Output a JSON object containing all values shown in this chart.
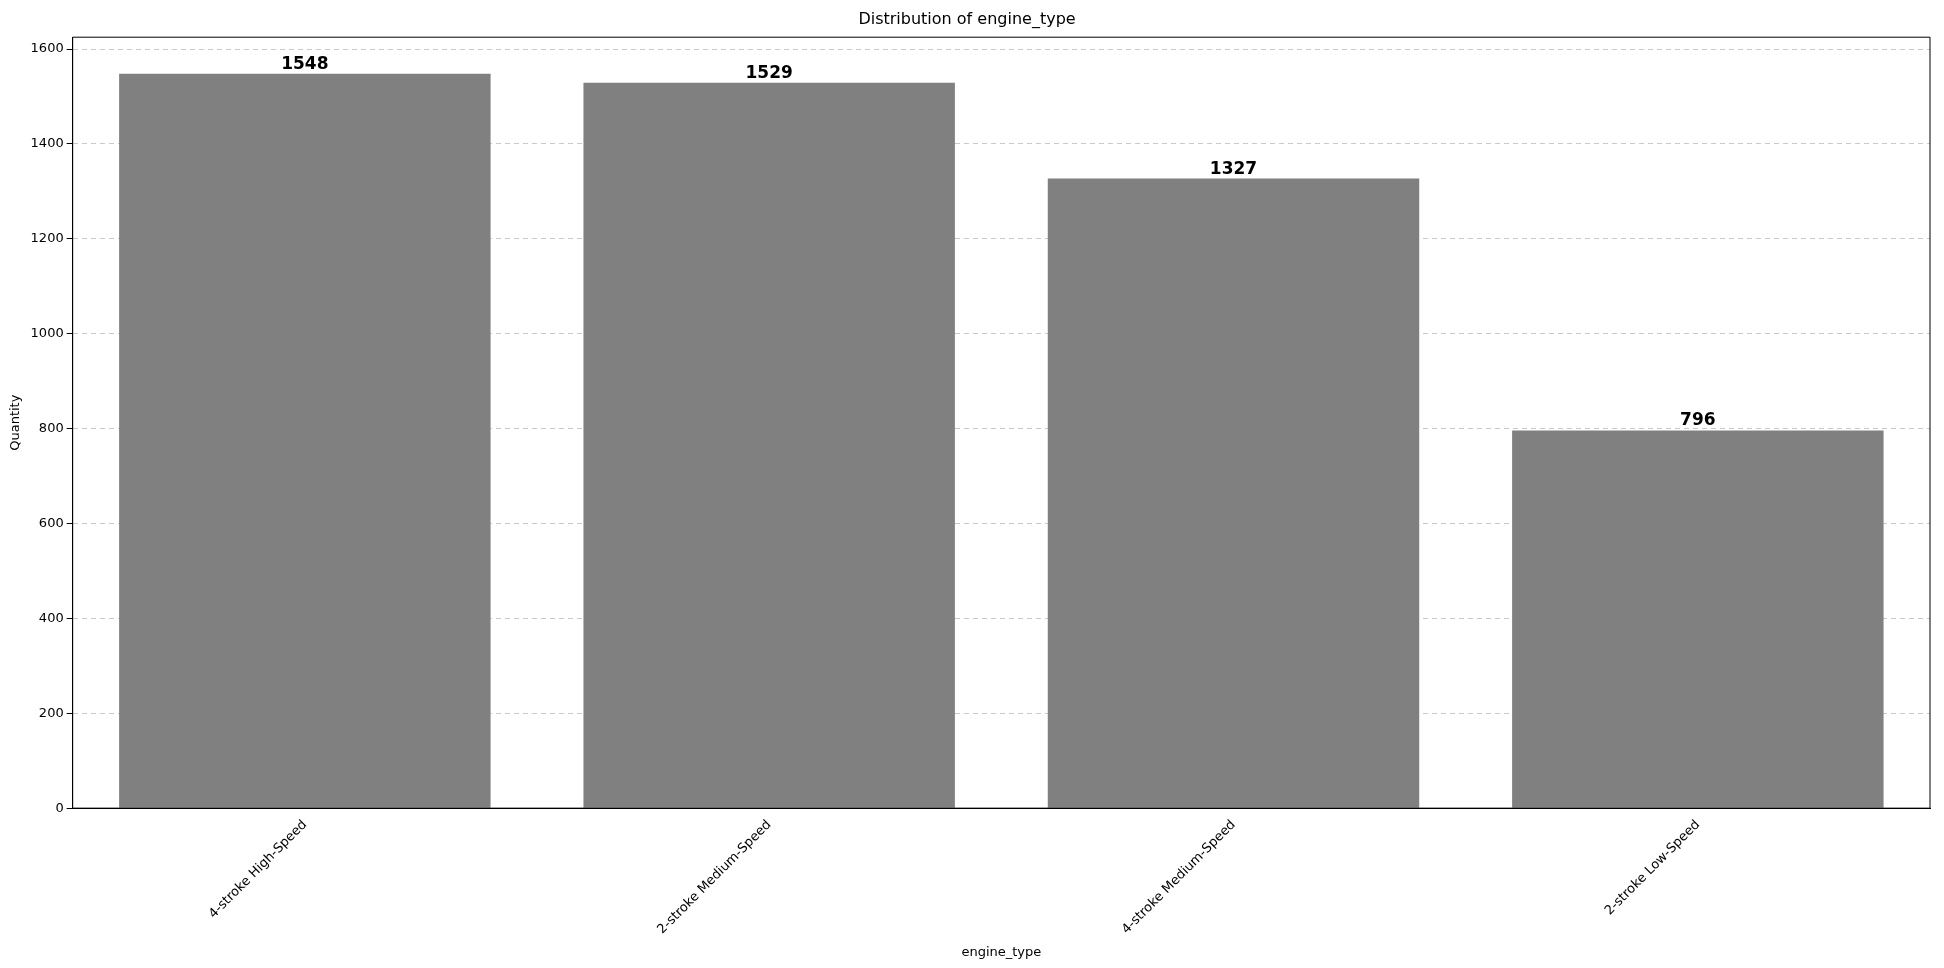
{
  "chart_data": {
    "type": "bar",
    "title": "Distribution of engine_type",
    "xlabel": "engine_type",
    "ylabel": "Quantity",
    "categories": [
      "4-stroke High-Speed",
      "2-stroke Medium-Speed",
      "4-stroke Medium-Speed",
      "2-stroke Low-Speed"
    ],
    "values": [
      1548,
      1529,
      1327,
      796
    ],
    "color": "#808080",
    "ylim": [
      0,
      1625
    ],
    "yticks": [
      0,
      200,
      400,
      600,
      800,
      1000,
      1200,
      1400,
      1600
    ],
    "grid": "y",
    "data_labels": true
  }
}
